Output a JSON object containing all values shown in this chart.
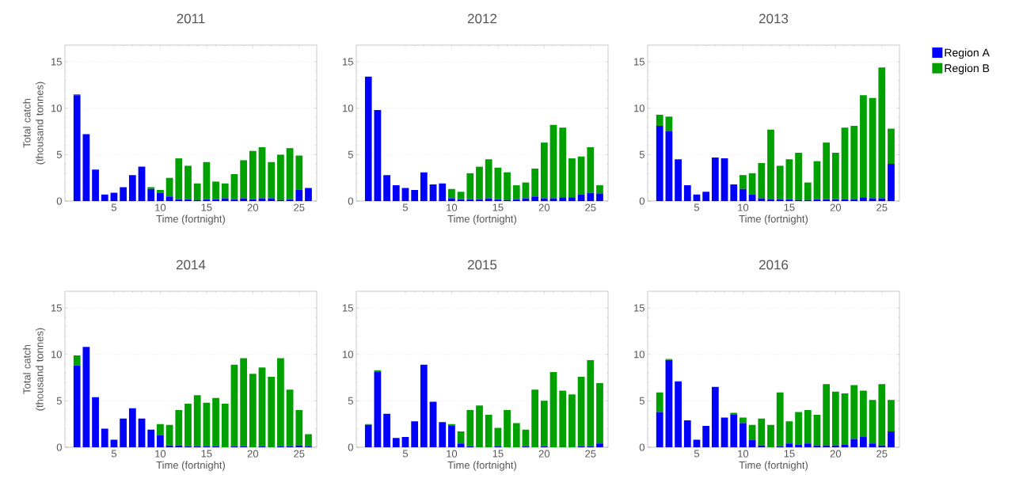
{
  "chart_data": [
    {
      "type": "bar",
      "title": "2011",
      "xlabel": "Time (fortnight)",
      "ylabel": "Total catch (thousand tonnes)",
      "stacked": true,
      "grid": "y",
      "x": [
        1,
        2,
        3,
        4,
        5,
        6,
        7,
        8,
        9,
        10,
        11,
        12,
        13,
        14,
        15,
        16,
        17,
        18,
        19,
        20,
        21,
        22,
        23,
        24,
        25,
        26
      ],
      "xlim": [
        -0.3,
        26.9
      ],
      "ylim": [
        0,
        16.8
      ],
      "xticks": [
        5,
        10,
        15,
        20,
        25
      ],
      "yticks": [
        0,
        5,
        10,
        15
      ],
      "series": [
        {
          "color": "#0000ff",
          "values": [
            11.4,
            7.2,
            3.4,
            0.7,
            0.9,
            1.5,
            2.8,
            3.7,
            1.3,
            0.9,
            0.5,
            0.2,
            0.2,
            0.1,
            0.2,
            0.2,
            0.3,
            0.2,
            0.3,
            0.2,
            0.3,
            0.3,
            0.1,
            0.2,
            1.2,
            1.4
          ]
        },
        {
          "color": "#00a000",
          "values": [
            0.1,
            0,
            0,
            0,
            0,
            0,
            0,
            0,
            0.2,
            0.3,
            2.0,
            4.4,
            3.6,
            1.8,
            4.0,
            1.9,
            1.6,
            2.7,
            4.1,
            5.2,
            5.5,
            3.9,
            4.9,
            5.5,
            3.7,
            0
          ]
        }
      ]
    },
    {
      "type": "bar",
      "title": "2012",
      "xlabel": "Time (fortnight)",
      "stacked": true,
      "grid": "y",
      "x": [
        1,
        2,
        3,
        4,
        5,
        6,
        7,
        8,
        9,
        10,
        11,
        12,
        13,
        14,
        15,
        16,
        17,
        18,
        19,
        20,
        21,
        22,
        23,
        24,
        25,
        26
      ],
      "xlim": [
        -0.3,
        26.9
      ],
      "ylim": [
        0,
        16.8
      ],
      "xticks": [
        5,
        10,
        15,
        20,
        25
      ],
      "yticks": [
        0,
        5,
        10,
        15
      ],
      "series": [
        {
          "color": "#0000ff",
          "values": [
            13.4,
            9.8,
            2.8,
            1.7,
            1.4,
            1.2,
            3.1,
            1.8,
            1.9,
            0.3,
            0.2,
            0.2,
            0.2,
            0.3,
            0.2,
            0.1,
            0.2,
            0.3,
            0.5,
            0.3,
            0.3,
            0.4,
            0.4,
            0.7,
            0.9,
            0.8
          ]
        },
        {
          "color": "#00a000",
          "values": [
            0,
            0,
            0,
            0,
            0,
            0,
            0,
            0,
            0,
            1.0,
            0.8,
            2.8,
            3.5,
            4.2,
            3.4,
            3.0,
            1.5,
            1.7,
            3.0,
            6.0,
            7.9,
            7.5,
            4.2,
            4.1,
            4.9,
            0.9
          ]
        }
      ]
    },
    {
      "type": "bar",
      "title": "2013",
      "xlabel": "Time (fortnight)",
      "stacked": true,
      "grid": "y",
      "legend": "right",
      "x": [
        1,
        2,
        3,
        4,
        5,
        6,
        7,
        8,
        9,
        10,
        11,
        12,
        13,
        14,
        15,
        16,
        17,
        18,
        19,
        20,
        21,
        22,
        23,
        24,
        25,
        26
      ],
      "xlim": [
        -0.3,
        26.9
      ],
      "ylim": [
        0,
        16.8
      ],
      "xticks": [
        5,
        10,
        15,
        20,
        25
      ],
      "yticks": [
        0,
        5,
        10,
        15
      ],
      "series": [
        {
          "name": "Region A",
          "color": "#0000ff",
          "values": [
            8.1,
            7.5,
            4.5,
            1.7,
            0.7,
            1.0,
            4.7,
            4.6,
            1.8,
            1.3,
            0.7,
            0.3,
            0.2,
            0.2,
            0.2,
            0.1,
            0.1,
            0.2,
            0.2,
            0.2,
            0.2,
            0.2,
            0.4,
            0.3,
            0.3,
            4.0
          ]
        },
        {
          "name": "Region B",
          "color": "#00a000",
          "values": [
            1.2,
            1.6,
            0,
            0,
            0,
            0,
            0,
            0,
            0,
            1.5,
            2.3,
            3.8,
            7.5,
            3.6,
            4.3,
            5.1,
            1.9,
            4.1,
            6.1,
            5.0,
            7.7,
            7.9,
            11.0,
            10.8,
            14.1,
            3.8
          ]
        }
      ]
    },
    {
      "type": "bar",
      "title": "2014",
      "xlabel": "Time (fortnight)",
      "ylabel": "Total catch (thousand tonnes)",
      "stacked": true,
      "grid": "y",
      "x": [
        1,
        2,
        3,
        4,
        5,
        6,
        7,
        8,
        9,
        10,
        11,
        12,
        13,
        14,
        15,
        16,
        17,
        18,
        19,
        20,
        21,
        22,
        23,
        24,
        25,
        26
      ],
      "xlim": [
        -0.3,
        26.9
      ],
      "ylim": [
        0,
        16.8
      ],
      "xticks": [
        5,
        10,
        15,
        20,
        25
      ],
      "yticks": [
        0,
        5,
        10,
        15
      ],
      "series": [
        {
          "color": "#0000ff",
          "values": [
            8.8,
            10.8,
            5.4,
            2.0,
            0.8,
            3.1,
            4.2,
            3.1,
            1.9,
            1.3,
            0.2,
            0.2,
            0.1,
            0.1,
            0.1,
            0.1,
            0,
            0.1,
            0.1,
            0,
            0.1,
            0,
            0.1,
            0.1,
            0.2,
            0.1
          ]
        },
        {
          "color": "#00a000",
          "values": [
            1.1,
            0,
            0,
            0,
            0,
            0,
            0,
            0,
            0,
            1.2,
            2.2,
            3.8,
            4.6,
            5.5,
            4.7,
            5.2,
            4.7,
            8.8,
            9.5,
            7.9,
            8.5,
            7.6,
            9.5,
            6.1,
            3.8,
            1.3
          ]
        }
      ]
    },
    {
      "type": "bar",
      "title": "2015",
      "xlabel": "Time (fortnight)",
      "stacked": true,
      "grid": "y",
      "x": [
        1,
        2,
        3,
        4,
        5,
        6,
        7,
        8,
        9,
        10,
        11,
        12,
        13,
        14,
        15,
        16,
        17,
        18,
        19,
        20,
        21,
        22,
        23,
        24,
        25,
        26
      ],
      "xlim": [
        -0.3,
        26.9
      ],
      "ylim": [
        0,
        16.8
      ],
      "xticks": [
        5,
        10,
        15,
        20,
        25
      ],
      "yticks": [
        0,
        5,
        10,
        15
      ],
      "series": [
        {
          "color": "#0000ff",
          "values": [
            2.4,
            8.1,
            3.6,
            1.0,
            1.1,
            2.8,
            8.9,
            4.9,
            2.7,
            2.3,
            0.4,
            0.1,
            0,
            0,
            0.1,
            0,
            0,
            0.1,
            0,
            0.1,
            0,
            0,
            0,
            0.1,
            0.1,
            0.4
          ]
        },
        {
          "color": "#00a000",
          "values": [
            0.1,
            0.2,
            0,
            0,
            0,
            0,
            0,
            0,
            0,
            0.2,
            1.3,
            3.9,
            4.5,
            3.5,
            2.0,
            4.0,
            2.6,
            1.8,
            6.2,
            4.9,
            8.1,
            6.1,
            5.7,
            7.5,
            9.3,
            6.5
          ]
        }
      ]
    },
    {
      "type": "bar",
      "title": "2016",
      "xlabel": "Time (fortnight)",
      "stacked": true,
      "grid": "y",
      "x": [
        1,
        2,
        3,
        4,
        5,
        6,
        7,
        8,
        9,
        10,
        11,
        12,
        13,
        14,
        15,
        16,
        17,
        18,
        19,
        20,
        21,
        22,
        23,
        24,
        25,
        26
      ],
      "xlim": [
        -0.3,
        26.9
      ],
      "ylim": [
        0,
        16.8
      ],
      "xticks": [
        5,
        10,
        15,
        20,
        25
      ],
      "yticks": [
        0,
        5,
        10,
        15
      ],
      "series": [
        {
          "color": "#0000ff",
          "values": [
            3.8,
            9.4,
            7.1,
            2.9,
            0.8,
            2.3,
            6.5,
            3.2,
            3.5,
            2.6,
            0.8,
            0.2,
            0,
            0.1,
            0.4,
            0.3,
            0.4,
            0.2,
            0.2,
            0.2,
            0.3,
            0.9,
            1.1,
            0.4,
            0.2,
            1.7
          ]
        },
        {
          "color": "#00a000",
          "values": [
            2.1,
            0.1,
            0,
            0,
            0,
            0,
            0,
            0,
            0.2,
            0.6,
            1.6,
            2.9,
            2.4,
            5.8,
            2.4,
            3.5,
            3.6,
            3.3,
            6.6,
            5.8,
            5.5,
            5.8,
            5.0,
            4.7,
            6.6,
            3.4
          ]
        }
      ]
    }
  ]
}
